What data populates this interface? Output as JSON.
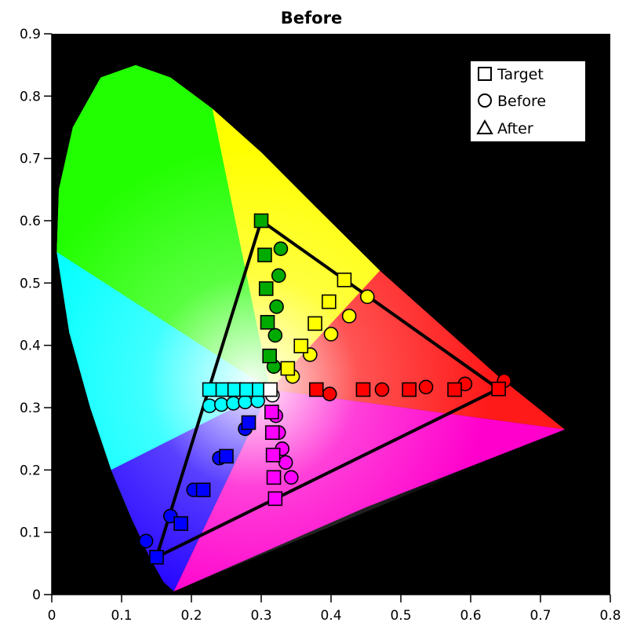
{
  "chart_data": {
    "type": "scatter",
    "title": "Before",
    "xlim": [
      0,
      0.8
    ],
    "ylim": [
      0,
      0.9
    ],
    "x_ticks": [
      "0",
      "0.1",
      "0.2",
      "0.3",
      "0.4",
      "0.5",
      "0.6",
      "0.7",
      "0.8"
    ],
    "y_ticks": [
      "0",
      "0.1",
      "0.2",
      "0.3",
      "0.4",
      "0.5",
      "0.6",
      "0.7",
      "0.8",
      "0.9"
    ],
    "background": "#000000",
    "grid": false,
    "legend": {
      "placement": "top-right",
      "entries": [
        {
          "symbol": "square",
          "label": "Target"
        },
        {
          "symbol": "circle",
          "label": "Before"
        },
        {
          "symbol": "triangle",
          "label": "After"
        }
      ]
    },
    "gamut_triangle": [
      [
        0.3,
        0.6
      ],
      [
        0.64,
        0.33
      ],
      [
        0.15,
        0.06
      ]
    ],
    "spectral_locus": [
      [
        0.175,
        0.005
      ],
      [
        0.16,
        0.02
      ],
      [
        0.14,
        0.06
      ],
      [
        0.115,
        0.12
      ],
      [
        0.085,
        0.2
      ],
      [
        0.055,
        0.3
      ],
      [
        0.025,
        0.42
      ],
      [
        0.007,
        0.55
      ],
      [
        0.01,
        0.65
      ],
      [
        0.03,
        0.75
      ],
      [
        0.07,
        0.83
      ],
      [
        0.12,
        0.85
      ],
      [
        0.17,
        0.83
      ],
      [
        0.23,
        0.78
      ],
      [
        0.3,
        0.71
      ],
      [
        0.38,
        0.62
      ],
      [
        0.47,
        0.52
      ],
      [
        0.55,
        0.44
      ],
      [
        0.64,
        0.35
      ],
      [
        0.735,
        0.265
      ]
    ],
    "series": [
      {
        "color": "#ff0000",
        "target": [
          [
            0.379,
            0.329
          ],
          [
            0.446,
            0.329
          ],
          [
            0.512,
            0.329
          ],
          [
            0.577,
            0.329
          ],
          [
            0.64,
            0.33
          ]
        ],
        "before": [
          [
            0.398,
            0.322
          ],
          [
            0.473,
            0.329
          ],
          [
            0.536,
            0.333
          ],
          [
            0.592,
            0.338
          ],
          [
            0.648,
            0.343
          ]
        ]
      },
      {
        "color": "#ffff00",
        "target": [
          [
            0.338,
            0.363
          ],
          [
            0.357,
            0.399
          ],
          [
            0.377,
            0.435
          ],
          [
            0.397,
            0.47
          ],
          [
            0.419,
            0.505
          ]
        ],
        "before": [
          [
            0.345,
            0.35
          ],
          [
            0.37,
            0.385
          ],
          [
            0.4,
            0.418
          ],
          [
            0.426,
            0.447
          ],
          [
            0.452,
            0.478
          ]
        ]
      },
      {
        "color": "#00aa00",
        "target": [
          [
            0.312,
            0.383
          ],
          [
            0.309,
            0.437
          ],
          [
            0.307,
            0.491
          ],
          [
            0.305,
            0.545
          ],
          [
            0.3,
            0.6
          ]
        ],
        "before": [
          [
            0.318,
            0.366
          ],
          [
            0.32,
            0.416
          ],
          [
            0.322,
            0.462
          ],
          [
            0.325,
            0.512
          ],
          [
            0.328,
            0.555
          ]
        ]
      },
      {
        "color": "#00ffff",
        "target": [
          [
            0.226,
            0.329
          ],
          [
            0.245,
            0.329
          ],
          [
            0.262,
            0.329
          ],
          [
            0.279,
            0.329
          ],
          [
            0.297,
            0.329
          ]
        ],
        "before": [
          [
            0.226,
            0.303
          ],
          [
            0.243,
            0.305
          ],
          [
            0.26,
            0.307
          ],
          [
            0.277,
            0.309
          ],
          [
            0.295,
            0.311
          ]
        ]
      },
      {
        "color": "#0000ff",
        "target": [
          [
            0.15,
            0.06
          ],
          [
            0.185,
            0.114
          ],
          [
            0.217,
            0.168
          ],
          [
            0.25,
            0.222
          ],
          [
            0.282,
            0.276
          ]
        ],
        "before": [
          [
            0.135,
            0.086
          ],
          [
            0.17,
            0.126
          ],
          [
            0.203,
            0.168
          ],
          [
            0.24,
            0.219
          ],
          [
            0.277,
            0.266
          ]
        ]
      },
      {
        "color": "#ff00ff",
        "target": [
          [
            0.32,
            0.154
          ],
          [
            0.318,
            0.188
          ],
          [
            0.317,
            0.224
          ],
          [
            0.316,
            0.26
          ],
          [
            0.315,
            0.293
          ]
        ],
        "before": [
          [
            0.343,
            0.188
          ],
          [
            0.335,
            0.212
          ],
          [
            0.33,
            0.234
          ],
          [
            0.325,
            0.26
          ],
          [
            0.321,
            0.287
          ]
        ]
      },
      {
        "color": "#ffffff",
        "target": [
          [
            0.313,
            0.329
          ]
        ],
        "before": [
          [
            0.316,
            0.32
          ]
        ]
      }
    ]
  }
}
